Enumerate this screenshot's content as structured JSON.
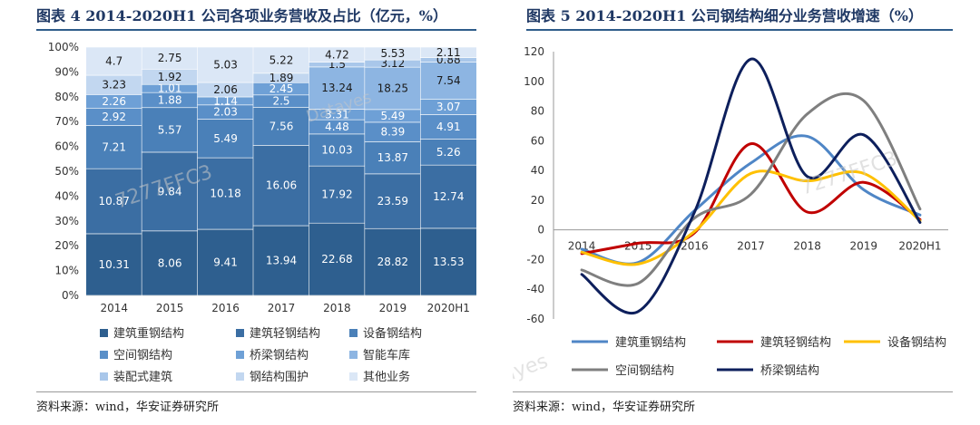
{
  "left_title": "图表 4 2014-2020H1 公司各项业务营收及占比（亿元，%）",
  "right_title": "图表 5 2014-2020H1 公司钢结构细分业务营收增速（%）",
  "left_source": "资料来源：wind，华安证券研究所",
  "right_source": "资料来源：wind，华安证券研究所",
  "watermarks": [
    "Datayes",
    "7277FFC3"
  ],
  "chart_data": [
    {
      "type": "bar",
      "stacked": true,
      "normalized": true,
      "title": "2014-2020H1 公司各项业务营收及占比（亿元，%）",
      "categories": [
        "2014",
        "2015",
        "2016",
        "2017",
        "2018",
        "2019",
        "2020H1"
      ],
      "y_ticks": [
        "0%",
        "10%",
        "20%",
        "30%",
        "40%",
        "50%",
        "60%",
        "70%",
        "80%",
        "90%",
        "100%"
      ],
      "ylim": [
        0,
        100
      ],
      "legend_position": "bottom",
      "series": [
        {
          "name": "建筑重钢结构",
          "color": "#2e5f8f",
          "values": [
            10.31,
            8.06,
            9.41,
            13.94,
            22.68,
            28.82,
            13.53
          ]
        },
        {
          "name": "建筑轻钢结构",
          "color": "#3b6ea3",
          "values": [
            10.87,
            9.84,
            10.18,
            16.06,
            17.92,
            23.59,
            12.74
          ]
        },
        {
          "name": "设备钢结构",
          "color": "#4a80b8",
          "values": [
            7.21,
            5.57,
            5.49,
            7.56,
            10.03,
            13.87,
            5.26
          ]
        },
        {
          "name": "空间钢结构",
          "color": "#5a8fc8",
          "values": [
            2.92,
            1.88,
            2.03,
            2.5,
            4.48,
            8.39,
            4.91
          ]
        },
        {
          "name": "桥梁钢结构",
          "color": "#6ea0d6",
          "values": [
            2.26,
            1.01,
            1.14,
            2.45,
            3.31,
            5.49,
            3.07
          ]
        },
        {
          "name": "智能车库",
          "color": "#8db5e2",
          "values": [
            null,
            null,
            null,
            null,
            13.24,
            18.25,
            7.54
          ]
        },
        {
          "name": "装配式建筑",
          "color": "#a9c7ea",
          "values": [
            null,
            null,
            null,
            null,
            1.5,
            3.12,
            0.88
          ]
        },
        {
          "name": "钢结构围护",
          "color": "#c2d7f0",
          "values": [
            3.23,
            1.92,
            2.06,
            1.89,
            null,
            null,
            null
          ]
        },
        {
          "name": "其他业务",
          "color": "#dbe7f6",
          "values": [
            4.7,
            2.75,
            5.03,
            5.22,
            4.72,
            5.53,
            2.11
          ]
        }
      ]
    },
    {
      "type": "line",
      "smooth": true,
      "title": "2014-2020H1 公司钢结构细分业务营收增速（%）",
      "categories": [
        "2014",
        "2015",
        "2016",
        "2017",
        "2018",
        "2019",
        "2020H1"
      ],
      "y_ticks": [
        "-60",
        "-40",
        "-20",
        "0",
        "20",
        "40",
        "60",
        "80",
        "100",
        "120"
      ],
      "ylim": [
        -60,
        120
      ],
      "legend_position": "bottom",
      "series": [
        {
          "name": "建筑重钢结构",
          "color": "#4f86c6",
          "values": [
            -13,
            -22,
            13,
            45,
            63,
            27,
            10
          ]
        },
        {
          "name": "建筑轻钢结构",
          "color": "#c00000",
          "values": [
            -16,
            -9,
            -2,
            58,
            12,
            32,
            7
          ]
        },
        {
          "name": "设备钢结构",
          "color": "#ffc000",
          "values": [
            -15,
            -23,
            -1,
            38,
            33,
            38,
            6
          ]
        },
        {
          "name": "空间钢结构",
          "color": "#7f7f7f",
          "values": [
            -27,
            -36,
            8,
            24,
            78,
            87,
            14
          ]
        },
        {
          "name": "桥梁钢结构",
          "color": "#0d1f5c",
          "values": [
            -30,
            -55,
            12,
            115,
            36,
            64,
            5
          ]
        }
      ]
    }
  ]
}
